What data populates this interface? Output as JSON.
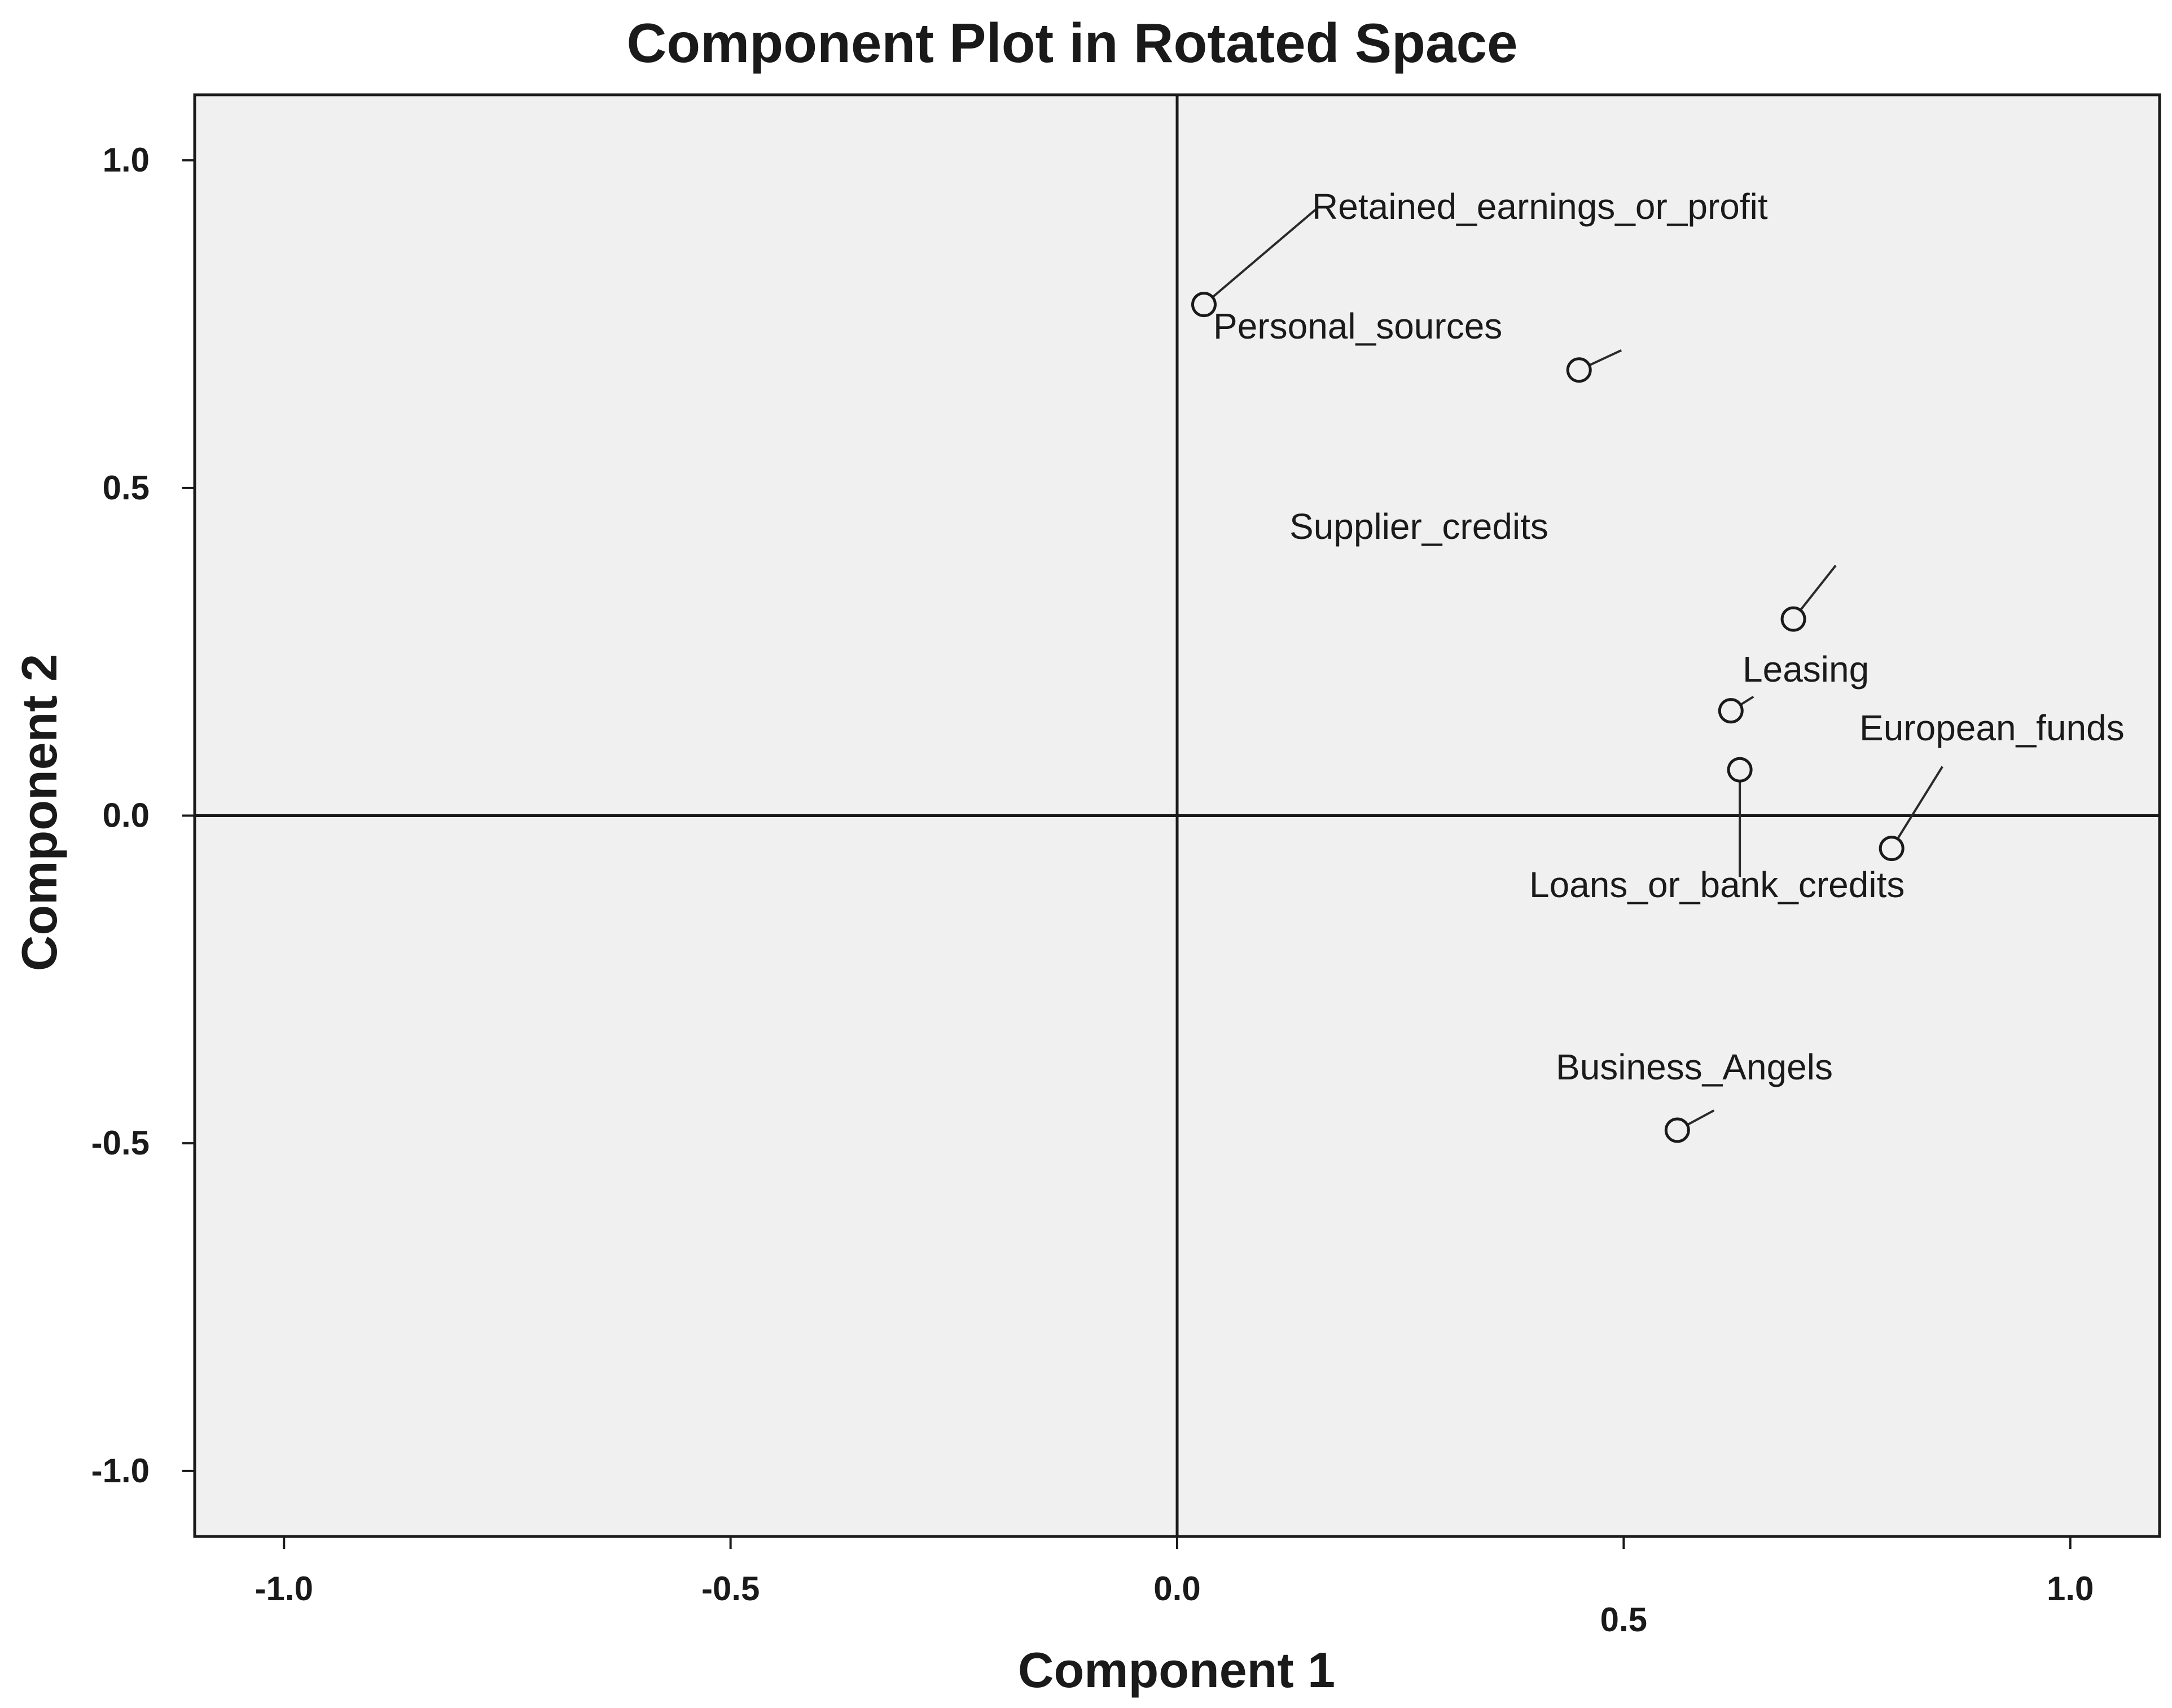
{
  "chart_data": {
    "type": "scatter",
    "title": "Component Plot in Rotated Space",
    "xlabel": "Component 1",
    "ylabel": "Component 2",
    "xlim": [
      -1.1,
      1.1
    ],
    "ylim": [
      -1.1,
      1.1
    ],
    "x_ticks": [
      {
        "value": -1.0,
        "label": "-1.0"
      },
      {
        "value": -0.5,
        "label": "-0.5"
      },
      {
        "value": 0.0,
        "label": "0.0"
      },
      {
        "value": 0.5,
        "label": "0.5"
      },
      {
        "value": 1.0,
        "label": "1.0"
      }
    ],
    "y_ticks": [
      {
        "value": 1.0,
        "label": "1.0"
      },
      {
        "value": 0.5,
        "label": "0.5"
      },
      {
        "value": 0.0,
        "label": "0.0"
      },
      {
        "value": -0.5,
        "label": "-0.5"
      },
      {
        "value": -1.0,
        "label": "-1.0"
      }
    ],
    "reference_lines": {
      "x": 0,
      "y": 0
    },
    "grid": false,
    "points": [
      {
        "label": "Retained_earnings_or_profit",
        "x": 0.03,
        "y": 0.78
      },
      {
        "label": "Personal_sources",
        "x": 0.45,
        "y": 0.68
      },
      {
        "label": "Supplier_credits",
        "x": 0.69,
        "y": 0.3
      },
      {
        "label": "Leasing",
        "x": 0.62,
        "y": 0.16
      },
      {
        "label": "Loans_or_bank_credits",
        "x": 0.63,
        "y": 0.07
      },
      {
        "label": "European_funds",
        "x": 0.8,
        "y": -0.05
      },
      {
        "label": "Business_Angels",
        "x": 0.56,
        "y": -0.48
      }
    ]
  }
}
